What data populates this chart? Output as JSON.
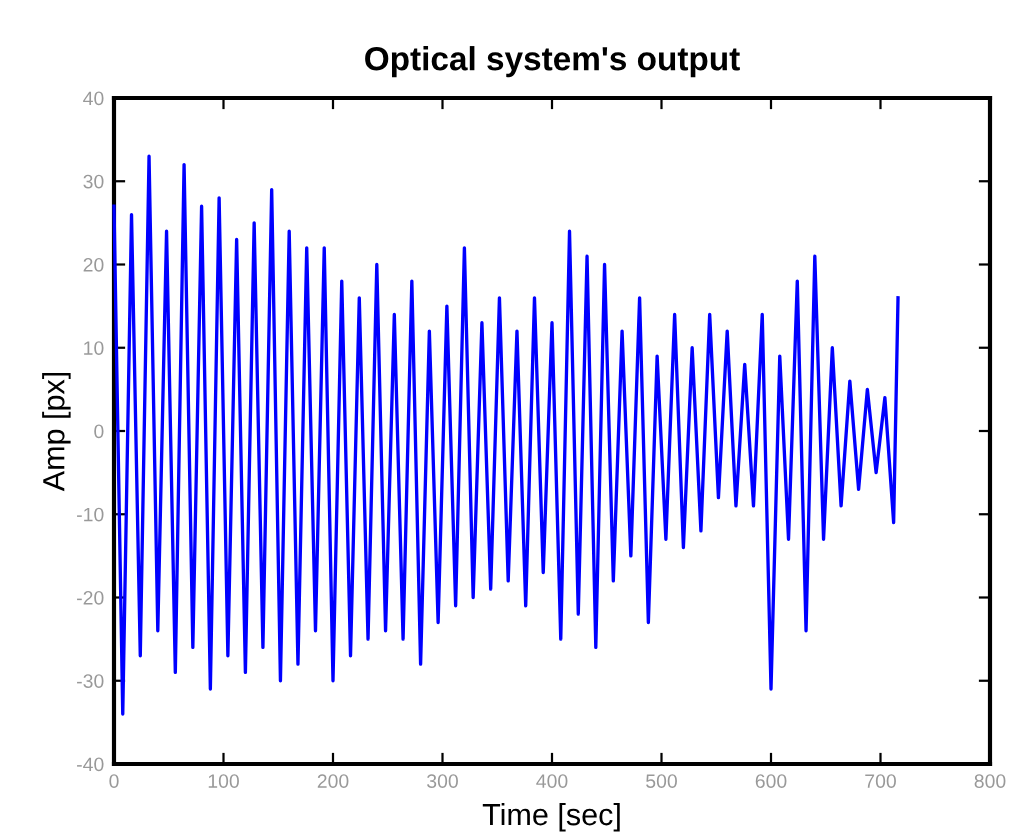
{
  "chart_data": {
    "type": "line",
    "title": "Optical system's output",
    "xlabel": "Time [sec]",
    "ylabel": "Amp [px]",
    "x": [
      0,
      8,
      16,
      24,
      32,
      40,
      48,
      56,
      64,
      72,
      80,
      88,
      96,
      104,
      112,
      120,
      128,
      136,
      144,
      152,
      160,
      168,
      176,
      184,
      192,
      200,
      208,
      216,
      224,
      232,
      240,
      248,
      256,
      264,
      272,
      280,
      288,
      296,
      304,
      312,
      320,
      328,
      336,
      344,
      352,
      360,
      368,
      376,
      384,
      392,
      400,
      408,
      416,
      424,
      432,
      440,
      448,
      456,
      464,
      472,
      480,
      488,
      496,
      504,
      512,
      520,
      528,
      536,
      544,
      552,
      560,
      568,
      576,
      584,
      592,
      600,
      608,
      616,
      624,
      632,
      640,
      648,
      656,
      664,
      672,
      680,
      688,
      696,
      704,
      712,
      716
    ],
    "series": [
      {
        "color": "#0000ff",
        "values": [
          27,
          -34,
          26,
          -27,
          33,
          -24,
          24,
          -29,
          32,
          -26,
          27,
          -31,
          28,
          -27,
          23,
          -29,
          25,
          -26,
          29,
          -30,
          24,
          -28,
          22,
          -24,
          22,
          -30,
          18,
          -27,
          16,
          -25,
          20,
          -24,
          14,
          -25,
          18,
          -28,
          12,
          -23,
          15,
          -21,
          22,
          -20,
          13,
          -19,
          16,
          -18,
          12,
          -21,
          16,
          -17,
          13,
          -25,
          24,
          -22,
          21,
          -26,
          20,
          -18,
          12,
          -15,
          16,
          -23,
          9,
          -13,
          14,
          -14,
          10,
          -12,
          14,
          -8,
          12,
          -9,
          8,
          -9,
          14,
          -31,
          9,
          -13,
          18,
          -24,
          21,
          -13,
          10,
          -9,
          6,
          -7,
          5,
          -5,
          4,
          -11,
          16
        ]
      }
    ],
    "xlim": [
      0,
      800
    ],
    "xticks": [
      0,
      100,
      200,
      300,
      400,
      500,
      600,
      700,
      800
    ],
    "ylim": [
      -40,
      40
    ],
    "yticks": [
      -40,
      -30,
      -20,
      -10,
      0,
      10,
      20,
      30,
      40
    ],
    "grid": false,
    "legend": false,
    "marker": "none",
    "line_style": "solid"
  }
}
